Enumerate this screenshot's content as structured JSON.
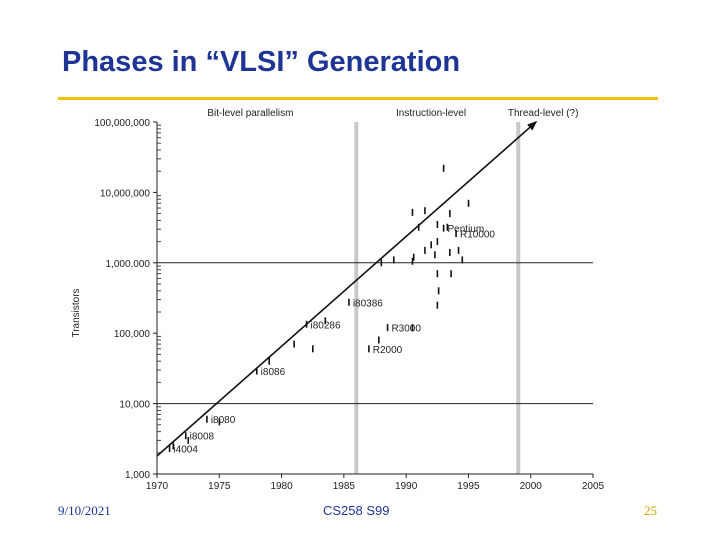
{
  "slide": {
    "title": "Phases in “VLSI” Generation",
    "date": "9/10/2021",
    "course": "CS258 S99",
    "page": "25",
    "accent_color": "#f2c200",
    "title_color": "#1f3596",
    "page_color": "#c8a800"
  },
  "chart_data": {
    "type": "scatter",
    "title": "",
    "xlabel": "",
    "ylabel": "Transistors",
    "yscale": "log",
    "xlim": [
      1970,
      2005
    ],
    "ylim": [
      1000,
      100000000
    ],
    "x_ticks": [
      "1970",
      "1975",
      "1980",
      "1985",
      "1990",
      "1995",
      "2000",
      "2005"
    ],
    "y_ticks": [
      {
        "value": 1000,
        "label": "1,000"
      },
      {
        "value": 10000,
        "label": "10,000"
      },
      {
        "value": 100000,
        "label": "100,000"
      },
      {
        "value": 1000000,
        "label": "1,000,000"
      },
      {
        "value": 10000000,
        "label": "10,000,000"
      },
      {
        "value": 100000000,
        "label": "100,000,000"
      }
    ],
    "phases": [
      {
        "label": "Bit-level parallelism",
        "x": 1977.5
      },
      {
        "label": "Instruction-level",
        "x": 1992
      },
      {
        "label": "Thread-level (?)",
        "x": 2001
      }
    ],
    "phase_boundaries": [
      1986,
      1999
    ],
    "reference_lines_y": [
      10000,
      1000000
    ],
    "trend": {
      "x": [
        1970,
        2000
      ],
      "y": [
        1800,
        90000000
      ]
    },
    "points": [
      {
        "label": "i4004",
        "x": 1971,
        "y": 2300
      },
      {
        "label": "i8008",
        "x": 1972.3,
        "y": 3500
      },
      {
        "label": "i8080",
        "x": 1974,
        "y": 6000
      },
      {
        "label": "i8086",
        "x": 1978,
        "y": 29000
      },
      {
        "label": "i80286",
        "x": 1982,
        "y": 134000
      },
      {
        "label": "i80386",
        "x": 1985.4,
        "y": 275000
      },
      {
        "label": "R2000",
        "x": 1987,
        "y": 60000
      },
      {
        "label": "R3000",
        "x": 1988.5,
        "y": 120000
      },
      {
        "label": "Pentium",
        "x": 1993,
        "y": 3100000
      },
      {
        "label": "R10000",
        "x": 1994,
        "y": 2600000
      },
      {
        "label": "",
        "x": 1971.3,
        "y": 2500
      },
      {
        "label": "",
        "x": 1972.5,
        "y": 3000
      },
      {
        "label": "",
        "x": 1975,
        "y": 5500
      },
      {
        "label": "",
        "x": 1979,
        "y": 40000
      },
      {
        "label": "",
        "x": 1981,
        "y": 70000
      },
      {
        "label": "",
        "x": 1982.5,
        "y": 60000
      },
      {
        "label": "",
        "x": 1983.5,
        "y": 150000
      },
      {
        "label": "",
        "x": 1987.8,
        "y": 80000
      },
      {
        "label": "",
        "x": 1988,
        "y": 1000000
      },
      {
        "label": "",
        "x": 1989,
        "y": 1100000
      },
      {
        "label": "",
        "x": 1990.5,
        "y": 1050000
      },
      {
        "label": "",
        "x": 1990.6,
        "y": 1200000
      },
      {
        "label": "",
        "x": 1991.5,
        "y": 1500000
      },
      {
        "label": "",
        "x": 1992,
        "y": 1800000
      },
      {
        "label": "",
        "x": 1992.3,
        "y": 1300000
      },
      {
        "label": "",
        "x": 1993.5,
        "y": 1400000
      },
      {
        "label": "",
        "x": 1994.2,
        "y": 1500000
      },
      {
        "label": "",
        "x": 1994.5,
        "y": 1100000
      },
      {
        "label": "",
        "x": 1992.5,
        "y": 700000
      },
      {
        "label": "",
        "x": 1993.6,
        "y": 700000
      },
      {
        "label": "",
        "x": 1992.6,
        "y": 400000
      },
      {
        "label": "",
        "x": 1992.5,
        "y": 250000
      },
      {
        "label": "",
        "x": 1991,
        "y": 3200000
      },
      {
        "label": "",
        "x": 1992.5,
        "y": 3500000
      },
      {
        "label": "",
        "x": 1990.5,
        "y": 5200000
      },
      {
        "label": "",
        "x": 1991.5,
        "y": 5500000
      },
      {
        "label": "",
        "x": 1993.5,
        "y": 5000000
      },
      {
        "label": "",
        "x": 1995,
        "y": 7000000
      },
      {
        "label": "",
        "x": 1993,
        "y": 22000000
      },
      {
        "label": "",
        "x": 1990.5,
        "y": 120000
      },
      {
        "label": "",
        "x": 1992.5,
        "y": 2000000
      },
      {
        "label": "",
        "x": 1993.3,
        "y": 3200000
      }
    ]
  }
}
